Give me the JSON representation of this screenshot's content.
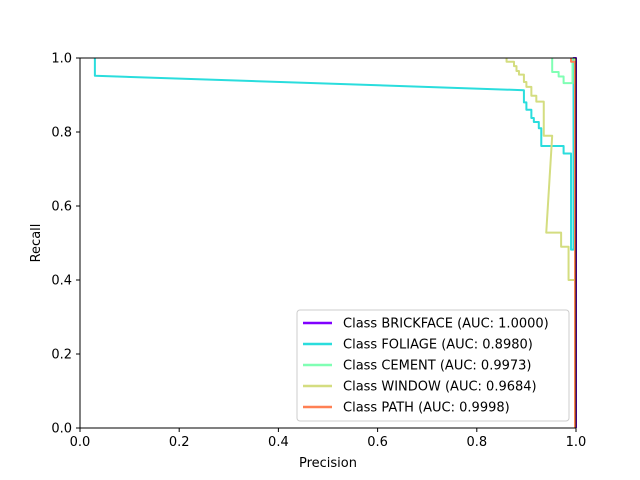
{
  "chart_data": {
    "type": "line",
    "title": "",
    "xlabel": "Precision",
    "ylabel": "Recall",
    "xlim": [
      0,
      1
    ],
    "ylim": [
      0,
      1
    ],
    "xticks": [
      "0.0",
      "0.2",
      "0.4",
      "0.6",
      "0.8",
      "1.0"
    ],
    "yticks": [
      "0.0",
      "0.2",
      "0.4",
      "0.6",
      "0.8",
      "1.0"
    ],
    "grid": false,
    "legend_position": "lower-right",
    "series": [
      {
        "name": "Class BRICKFACE (AUC: 1.0000)",
        "color": "#8000ff",
        "points": [
          [
            1.0,
            1.0
          ],
          [
            0.995,
            1.0
          ],
          [
            1.0,
            1.0
          ],
          [
            1.0,
            0.0
          ]
        ]
      },
      {
        "name": "Class FOLIAGE (AUC: 0.8980)",
        "color": "#2adddd",
        "points": [
          [
            0.03,
            1.0
          ],
          [
            0.03,
            0.952
          ],
          [
            0.895,
            0.913
          ],
          [
            0.895,
            0.88
          ],
          [
            0.9,
            0.88
          ],
          [
            0.9,
            0.86
          ],
          [
            0.91,
            0.86
          ],
          [
            0.91,
            0.838
          ],
          [
            0.915,
            0.838
          ],
          [
            0.915,
            0.827
          ],
          [
            0.925,
            0.827
          ],
          [
            0.925,
            0.81
          ],
          [
            0.93,
            0.81
          ],
          [
            0.93,
            0.762
          ],
          [
            0.975,
            0.762
          ],
          [
            0.975,
            0.742
          ],
          [
            0.99,
            0.742
          ],
          [
            0.99,
            0.482
          ],
          [
            0.995,
            0.482
          ],
          [
            0.995,
            1.0
          ]
        ]
      },
      {
        "name": "Class CEMENT (AUC: 0.9973)",
        "color": "#80ffb4",
        "points": [
          [
            0.952,
            1.0
          ],
          [
            0.952,
            0.962
          ],
          [
            0.965,
            0.962
          ],
          [
            0.965,
            0.95
          ],
          [
            0.975,
            0.95
          ],
          [
            0.975,
            0.932
          ],
          [
            0.993,
            0.932
          ],
          [
            0.993,
            1.0
          ]
        ]
      },
      {
        "name": "Class WINDOW (AUC: 0.9684)",
        "color": "#d4dd80",
        "points": [
          [
            0.86,
            1.0
          ],
          [
            0.86,
            0.99
          ],
          [
            0.875,
            0.99
          ],
          [
            0.875,
            0.978
          ],
          [
            0.88,
            0.978
          ],
          [
            0.88,
            0.965
          ],
          [
            0.885,
            0.965
          ],
          [
            0.885,
            0.955
          ],
          [
            0.895,
            0.955
          ],
          [
            0.895,
            0.935
          ],
          [
            0.9,
            0.935
          ],
          [
            0.9,
            0.922
          ],
          [
            0.91,
            0.922
          ],
          [
            0.91,
            0.898
          ],
          [
            0.92,
            0.898
          ],
          [
            0.92,
            0.882
          ],
          [
            0.935,
            0.882
          ],
          [
            0.935,
            0.79
          ],
          [
            0.952,
            0.79
          ],
          [
            0.94,
            0.528
          ],
          [
            0.97,
            0.528
          ],
          [
            0.97,
            0.49
          ],
          [
            0.985,
            0.49
          ],
          [
            0.985,
            0.4
          ],
          [
            0.998,
            0.4
          ],
          [
            0.998,
            1.0
          ]
        ]
      },
      {
        "name": "Class PATH (AUC: 0.9998)",
        "color": "#ff8054",
        "points": [
          [
            0.99,
            1.0
          ],
          [
            0.99,
            0.99
          ],
          [
            0.998,
            0.99
          ],
          [
            0.998,
            0.0
          ]
        ]
      }
    ]
  }
}
